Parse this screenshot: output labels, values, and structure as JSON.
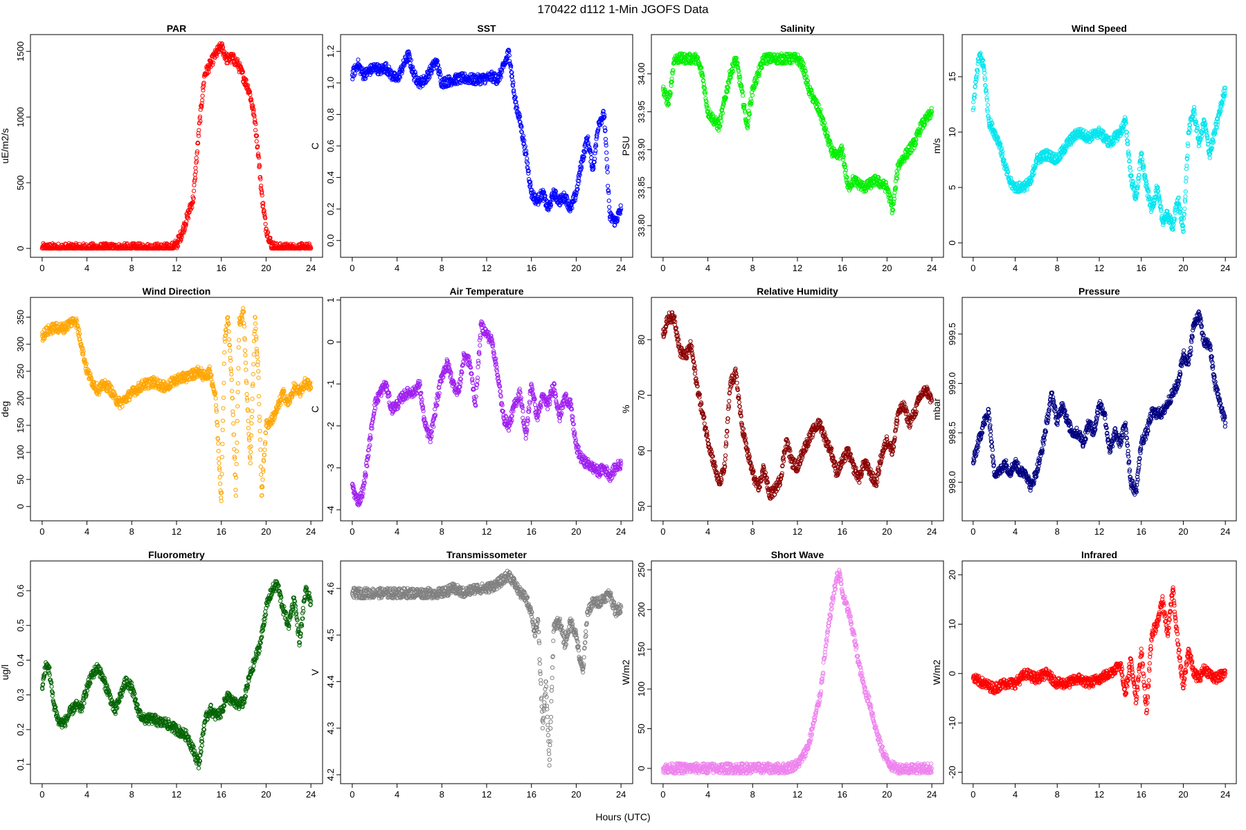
{
  "figure": {
    "title": "170422   d112   1-Min  JGOFS Data",
    "xlabel": "Hours (UTC)"
  },
  "chart_data": [
    {
      "type": "scatter",
      "title": "PAR",
      "ylabel": "uE/m2/s",
      "color": "#ff0000",
      "xlim": [
        0,
        24
      ],
      "ylim": [
        0,
        1560
      ],
      "xticks": [
        0,
        4,
        8,
        12,
        16,
        20,
        24
      ],
      "yticks": [
        0,
        500,
        1000,
        1500
      ],
      "yticklabels": [
        "0",
        "500",
        "1000",
        "1500"
      ],
      "x": [
        0,
        2,
        4,
        6,
        8,
        10,
        11.5,
        12.0,
        12.5,
        13.0,
        13.5,
        14.0,
        14.5,
        15.0,
        15.5,
        16.0,
        16.5,
        17.0,
        17.5,
        18.0,
        18.5,
        19.0,
        19.3,
        19.6,
        20.0,
        20.5,
        21,
        22,
        24
      ],
      "y": [
        0,
        0,
        0,
        0,
        0,
        0,
        0,
        30,
        120,
        250,
        380,
        900,
        1320,
        1400,
        1480,
        1540,
        1440,
        1450,
        1400,
        1300,
        1200,
        980,
        720,
        420,
        150,
        20,
        0,
        0,
        0
      ]
    },
    {
      "type": "scatter",
      "title": "SST",
      "ylabel": "C",
      "color": "#0000ff",
      "xlim": [
        0,
        24
      ],
      "ylim": [
        -0.05,
        1.25
      ],
      "xticks": [
        0,
        4,
        8,
        12,
        16,
        20,
        24
      ],
      "yticks": [
        0,
        0.2,
        0.4,
        0.6,
        0.8,
        1.0,
        1.2
      ],
      "yticklabels": [
        "0.0",
        "0.2",
        "0.4",
        "0.6",
        "0.8",
        "1.0",
        "1.2"
      ],
      "x": [
        0,
        0.5,
        1,
        2,
        2.5,
        3,
        3.5,
        4,
        4.5,
        5,
        5.5,
        6,
        6.5,
        7,
        7.5,
        8,
        9,
        10,
        11,
        12,
        12.5,
        13,
        13.5,
        14,
        14.5,
        15,
        15.5,
        16,
        16.5,
        17,
        17.5,
        18,
        18.5,
        19,
        19.5,
        20,
        20.5,
        21,
        21.5,
        22,
        22.5,
        23,
        23.5,
        24
      ],
      "y": [
        1.05,
        1.12,
        1.05,
        1.1,
        1.08,
        1.1,
        1.05,
        1.02,
        1.1,
        1.18,
        1.05,
        1.0,
        1.02,
        1.08,
        1.14,
        1.0,
        1.02,
        1.03,
        1.02,
        1.03,
        1.04,
        1.02,
        1.1,
        1.2,
        0.9,
        0.75,
        0.55,
        0.3,
        0.25,
        0.3,
        0.2,
        0.3,
        0.25,
        0.28,
        0.2,
        0.3,
        0.5,
        0.65,
        0.45,
        0.75,
        0.8,
        0.15,
        0.12,
        0.2
      ]
    },
    {
      "type": "scatter",
      "title": "Salinity",
      "ylabel": "PSU",
      "color": "#00ee00",
      "xlim": [
        0,
        24
      ],
      "ylim": [
        33.77,
        34.04
      ],
      "xticks": [
        0,
        4,
        8,
        12,
        16,
        20,
        24
      ],
      "yticks": [
        33.8,
        33.85,
        33.9,
        33.95,
        34.0
      ],
      "yticklabels": [
        "33.80",
        "33.85",
        "33.90",
        "33.95",
        "34.00"
      ],
      "x": [
        0,
        0.5,
        1,
        2,
        3,
        3.5,
        4,
        5,
        6,
        6.5,
        7,
        7.5,
        8,
        8.5,
        9,
        10,
        11,
        12,
        12.5,
        13,
        14,
        15,
        15.5,
        16,
        16.5,
        17,
        18,
        19,
        20,
        20.5,
        21,
        22,
        22.5,
        23,
        23.5,
        24
      ],
      "y": [
        33.98,
        33.96,
        34.02,
        34.02,
        34.02,
        34.0,
        33.95,
        33.93,
        34.0,
        34.02,
        33.98,
        33.93,
        33.98,
        34.0,
        34.02,
        34.02,
        34.02,
        34.02,
        34.01,
        33.98,
        33.95,
        33.9,
        33.89,
        33.9,
        33.85,
        33.86,
        33.85,
        33.86,
        33.85,
        33.82,
        33.88,
        33.9,
        33.91,
        33.93,
        33.94,
        33.95
      ]
    },
    {
      "type": "scatter",
      "title": "Wind Speed",
      "ylabel": "m/s",
      "color": "#00e5ee",
      "xlim": [
        0,
        24
      ],
      "ylim": [
        -0.5,
        18
      ],
      "xticks": [
        0,
        4,
        8,
        12,
        16,
        20,
        24
      ],
      "yticks": [
        0,
        5,
        10,
        15
      ],
      "yticklabels": [
        "0",
        "5",
        "10",
        "15"
      ],
      "x": [
        0,
        0.3,
        0.6,
        1,
        1.5,
        2,
        2.5,
        3,
        3.5,
        4,
        4.5,
        5,
        5.5,
        6,
        7,
        8,
        9,
        10,
        11,
        12,
        13,
        14,
        14.5,
        15,
        15.5,
        16,
        16.5,
        17,
        17.5,
        18,
        18.5,
        19,
        19.5,
        20,
        20.5,
        21,
        21.5,
        22,
        22.5,
        23,
        23.5,
        24
      ],
      "y": [
        12,
        15,
        17,
        16,
        11,
        10,
        9,
        7,
        5.5,
        5,
        5,
        5.2,
        5.5,
        7.5,
        8,
        7.5,
        9,
        10,
        9.5,
        10,
        9,
        10,
        11,
        6,
        4,
        8,
        5,
        3,
        5,
        2,
        2.5,
        1.5,
        4,
        1,
        10,
        12,
        9,
        11,
        8,
        10,
        12,
        14
      ]
    },
    {
      "type": "scatter",
      "title": "Wind Direction",
      "ylabel": "deg",
      "color": "#ffa500",
      "xlim": [
        0,
        24
      ],
      "ylim": [
        -10,
        370
      ],
      "xticks": [
        0,
        4,
        8,
        12,
        16,
        20,
        24
      ],
      "yticks": [
        0,
        50,
        100,
        150,
        200,
        250,
        300,
        350
      ],
      "yticklabels": [
        "0",
        "50",
        "100",
        "150",
        "200",
        "250",
        "300",
        "350"
      ],
      "x": [
        0,
        0.5,
        1,
        2,
        2.5,
        3,
        3.5,
        4,
        4.5,
        5,
        5.5,
        6,
        6.5,
        7,
        7.5,
        8,
        9,
        10,
        11,
        12,
        13,
        14,
        14.5,
        15,
        15.5,
        16,
        16.3,
        16.6,
        17,
        17.3,
        17.6,
        18,
        18.3,
        18.6,
        19,
        19.3,
        19.6,
        20,
        20.5,
        21,
        21.5,
        22,
        22.5,
        23,
        23.5,
        24
      ],
      "y": [
        315,
        325,
        330,
        330,
        340,
        345,
        300,
        250,
        230,
        215,
        225,
        220,
        200,
        190,
        200,
        210,
        225,
        230,
        220,
        235,
        240,
        250,
        240,
        250,
        200,
        10,
        310,
        350,
        200,
        20,
        340,
        360,
        200,
        80,
        350,
        250,
        20,
        150,
        160,
        180,
        210,
        190,
        220,
        210,
        230,
        220
      ]
    },
    {
      "type": "scatter",
      "title": "Air Temperature",
      "ylabel": "C",
      "color": "#a020f0",
      "xlim": [
        0,
        24
      ],
      "ylim": [
        -4.05,
        0.85
      ],
      "xticks": [
        0,
        4,
        8,
        12,
        16,
        20,
        24
      ],
      "yticks": [
        -4,
        -3,
        -2,
        -1,
        0,
        1
      ],
      "yticklabels": [
        "-4",
        "-3",
        "-2",
        "-1",
        "0",
        "1"
      ],
      "x": [
        0,
        0.3,
        0.6,
        1,
        1.5,
        2,
        2.5,
        3,
        3.5,
        4,
        4.5,
        5,
        5.5,
        6,
        6.5,
        7,
        7.5,
        8,
        8.5,
        9,
        9.5,
        10,
        10.5,
        11,
        11.5,
        12,
        12.5,
        13,
        13.5,
        14,
        14.5,
        15,
        15.5,
        16,
        16.5,
        17,
        17.5,
        18,
        18.5,
        19,
        19.5,
        20,
        20.5,
        21,
        21.5,
        22,
        22.5,
        23,
        23.5,
        24
      ],
      "y": [
        -3.4,
        -3.7,
        -3.8,
        -3.5,
        -2.5,
        -1.5,
        -1.2,
        -1.0,
        -1.6,
        -1.5,
        -1.3,
        -1.2,
        -1.2,
        -1.0,
        -2.0,
        -2.3,
        -1.5,
        -0.8,
        -0.5,
        -1.0,
        -1.2,
        -0.3,
        -0.5,
        -1.5,
        0.4,
        0.2,
        0,
        -0.8,
        -1.8,
        -2.0,
        -1.5,
        -1.2,
        -2.3,
        -1.0,
        -1.8,
        -1.3,
        -1.5,
        -1.0,
        -1.8,
        -1.3,
        -1.5,
        -2.5,
        -2.8,
        -2.9,
        -3.0,
        -3.1,
        -3.0,
        -3.2,
        -3.0,
        -2.9
      ]
    },
    {
      "type": "scatter",
      "title": "Relative Humidity",
      "ylabel": "%",
      "color": "#8b0000",
      "xlim": [
        0,
        24
      ],
      "ylim": [
        49,
        86
      ],
      "xticks": [
        0,
        4,
        8,
        12,
        16,
        20,
        24
      ],
      "yticks": [
        50,
        60,
        70,
        80
      ],
      "yticklabels": [
        "50",
        "60",
        "70",
        "80"
      ],
      "x": [
        0,
        0.5,
        1,
        1.5,
        2,
        2.5,
        3,
        3.5,
        4,
        4.5,
        5,
        5.5,
        6,
        6.5,
        7,
        7.5,
        8,
        8.5,
        9,
        9.5,
        10,
        10.5,
        11,
        11.5,
        12,
        12.5,
        13,
        13.5,
        14,
        14.5,
        15,
        15.5,
        16,
        16.5,
        17,
        17.5,
        18,
        18.5,
        19,
        19.5,
        20,
        20.5,
        21,
        21.5,
        22,
        22.5,
        23,
        23.5,
        24
      ],
      "y": [
        81,
        84,
        84,
        78,
        77,
        79,
        72,
        67,
        62,
        58,
        54,
        57,
        72,
        74,
        65,
        60,
        56,
        53,
        57,
        52,
        53,
        55,
        62,
        58,
        57,
        60,
        62,
        64,
        65,
        62,
        60,
        56,
        58,
        60,
        57,
        55,
        58,
        56,
        54,
        59,
        62,
        60,
        67,
        68,
        65,
        67,
        70,
        71,
        69
      ]
    },
    {
      "type": "scatter",
      "title": "Pressure",
      "ylabel": "mbar",
      "color": "#000080",
      "xlim": [
        0,
        24
      ],
      "ylim": [
        997.7,
        999.78
      ],
      "xticks": [
        0,
        4,
        8,
        12,
        16,
        20,
        24
      ],
      "yticks": [
        998.0,
        998.5,
        999.0,
        999.5
      ],
      "yticklabels": [
        "998.0",
        "998.5",
        "999.0",
        "999.5"
      ],
      "x": [
        0,
        0.5,
        1,
        1.5,
        2,
        2.5,
        3,
        3.5,
        4,
        4.5,
        5,
        5.5,
        6,
        6.5,
        7,
        7.5,
        8,
        8.5,
        9,
        9.5,
        10,
        10.5,
        11,
        11.5,
        12,
        12.5,
        13,
        13.5,
        14,
        14.5,
        15,
        15.5,
        16,
        16.5,
        17,
        17.5,
        18,
        18.5,
        19,
        19.5,
        20,
        20.5,
        21,
        21.5,
        22,
        22.5,
        23,
        23.5,
        24
      ],
      "y": [
        998.2,
        998.4,
        998.6,
        998.7,
        998.1,
        998.1,
        998.2,
        998.1,
        998.2,
        998.1,
        998.1,
        997.95,
        998.1,
        998.3,
        998.6,
        998.9,
        998.6,
        998.8,
        998.6,
        998.5,
        998.5,
        998.4,
        998.6,
        998.5,
        998.8,
        998.7,
        998.3,
        998.5,
        998.4,
        998.6,
        998.0,
        997.9,
        998.4,
        998.5,
        998.7,
        998.7,
        998.7,
        998.8,
        998.9,
        999.0,
        999.3,
        999.2,
        999.6,
        999.7,
        999.4,
        999.4,
        999.0,
        998.8,
        998.6
      ]
    },
    {
      "type": "scatter",
      "title": "Fluorometry",
      "ylabel": "ug/l",
      "color": "#006400",
      "xlim": [
        0,
        24
      ],
      "ylim": [
        0.07,
        0.66
      ],
      "xticks": [
        0,
        4,
        8,
        12,
        16,
        20,
        24
      ],
      "yticks": [
        0.1,
        0.2,
        0.3,
        0.4,
        0.5,
        0.6
      ],
      "yticklabels": [
        "0.1",
        "0.2",
        "0.3",
        "0.4",
        "0.5",
        "0.6"
      ],
      "x": [
        0,
        0.3,
        0.6,
        1,
        1.5,
        2,
        2.5,
        3,
        3.5,
        4,
        4.5,
        5,
        5.5,
        6,
        6.5,
        7,
        7.5,
        8,
        8.5,
        9,
        9.5,
        10,
        10.5,
        11,
        11.5,
        12,
        12.5,
        13,
        13.5,
        14,
        14.5,
        15,
        15.5,
        16,
        16.5,
        17,
        17.5,
        18,
        18.5,
        19,
        19.5,
        20,
        20.5,
        21,
        21.5,
        22,
        22.5,
        23,
        23.5,
        24
      ],
      "y": [
        0.32,
        0.38,
        0.38,
        0.28,
        0.22,
        0.22,
        0.25,
        0.27,
        0.26,
        0.32,
        0.36,
        0.38,
        0.34,
        0.3,
        0.25,
        0.3,
        0.34,
        0.32,
        0.26,
        0.23,
        0.23,
        0.23,
        0.22,
        0.22,
        0.21,
        0.2,
        0.19,
        0.18,
        0.14,
        0.1,
        0.22,
        0.26,
        0.24,
        0.25,
        0.3,
        0.28,
        0.27,
        0.28,
        0.35,
        0.4,
        0.45,
        0.55,
        0.6,
        0.62,
        0.55,
        0.5,
        0.58,
        0.45,
        0.6,
        0.57
      ]
    },
    {
      "type": "scatter",
      "title": "Transmissometer",
      "ylabel": "V",
      "color": "#808080",
      "xlim": [
        0,
        24
      ],
      "ylim": [
        4.2,
        4.64
      ],
      "xticks": [
        0,
        4,
        8,
        12,
        16,
        20,
        24
      ],
      "yticks": [
        4.2,
        4.3,
        4.4,
        4.5,
        4.6
      ],
      "yticklabels": [
        "4.2",
        "4.3",
        "4.4",
        "4.5",
        "4.6"
      ],
      "x": [
        0,
        1,
        2,
        3,
        4,
        5,
        6,
        7,
        8,
        9,
        10,
        11,
        12,
        13,
        13.5,
        14,
        14.5,
        15,
        15.5,
        16,
        16.3,
        16.6,
        17,
        17.3,
        17.6,
        18,
        18.5,
        19,
        19.5,
        20,
        20.3,
        20.6,
        21,
        21.5,
        22,
        22.5,
        23,
        23.5,
        24
      ],
      "y": [
        4.59,
        4.59,
        4.59,
        4.59,
        4.59,
        4.59,
        4.59,
        4.59,
        4.59,
        4.6,
        4.59,
        4.6,
        4.6,
        4.61,
        4.62,
        4.63,
        4.61,
        4.59,
        4.58,
        4.55,
        4.5,
        4.53,
        4.3,
        4.4,
        4.22,
        4.52,
        4.53,
        4.48,
        4.53,
        4.5,
        4.45,
        4.42,
        4.55,
        4.57,
        4.57,
        4.58,
        4.59,
        4.55,
        4.56
      ]
    },
    {
      "type": "scatter",
      "title": "Short Wave",
      "ylabel": "W/m2",
      "color": "#ee82ee",
      "xlim": [
        0,
        24
      ],
      "ylim": [
        -8,
        250
      ],
      "xticks": [
        0,
        4,
        8,
        12,
        16,
        20,
        24
      ],
      "yticks": [
        0,
        50,
        100,
        150,
        200,
        250
      ],
      "yticklabels": [
        "0",
        "50",
        "100",
        "150",
        "200",
        "250"
      ],
      "x": [
        0,
        2,
        4,
        6,
        8,
        10,
        11,
        12,
        12.5,
        13,
        13.5,
        14,
        14.5,
        15,
        15.5,
        15.8,
        16,
        16.5,
        17,
        17.5,
        18,
        18.5,
        19,
        19.5,
        20,
        20.5,
        21,
        22,
        24
      ],
      "y": [
        0,
        0,
        0,
        0,
        0,
        0,
        0,
        5,
        15,
        30,
        60,
        90,
        150,
        200,
        240,
        245,
        220,
        200,
        170,
        130,
        100,
        80,
        50,
        25,
        10,
        2,
        0,
        0,
        0
      ]
    },
    {
      "type": "scatter",
      "title": "Infrared",
      "ylabel": "W/m2",
      "color": "#ff0000",
      "xlim": [
        0,
        24
      ],
      "ylim": [
        -20.5,
        21
      ],
      "xticks": [
        0,
        4,
        8,
        12,
        16,
        20,
        24
      ],
      "yticks": [
        -20,
        -10,
        0,
        10,
        20
      ],
      "yticklabels": [
        "-20",
        "-10",
        "0",
        "10",
        "20"
      ],
      "x": [
        0,
        1,
        2,
        3,
        4,
        5,
        6,
        7,
        8,
        9,
        10,
        11,
        12,
        13,
        14,
        14.5,
        15,
        15.5,
        16,
        16.5,
        17,
        17.5,
        18,
        18.5,
        19,
        19.5,
        20,
        20.5,
        21,
        21.5,
        22,
        22.5,
        23,
        24
      ],
      "y": [
        -1,
        -2,
        -3,
        -2,
        -2,
        0,
        -1,
        0,
        -2,
        -2,
        -1,
        -2,
        -1,
        0,
        2,
        -4,
        3,
        -6,
        5,
        -8,
        8,
        10,
        15,
        8,
        17,
        6,
        -3,
        5,
        0,
        -1,
        1,
        0,
        -1,
        0
      ]
    }
  ]
}
